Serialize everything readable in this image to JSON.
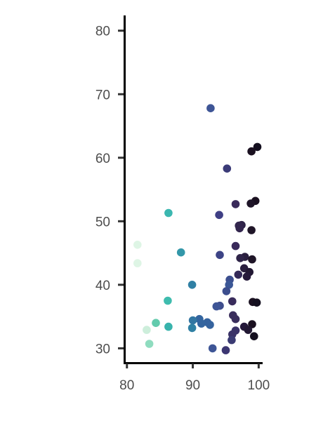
{
  "chart_data": {
    "type": "scatter",
    "xlabel": "",
    "ylabel": "",
    "xlim": [
      79.6,
      100.6
    ],
    "ylim": [
      27.5,
      82.4
    ],
    "x_ticks": [
      80,
      90,
      100
    ],
    "x_tick_labels": [
      "80",
      "90",
      "100"
    ],
    "y_ticks": [
      30,
      40,
      50,
      60,
      70,
      80
    ],
    "y_tick_labels": [
      "30",
      "40",
      "50",
      "60",
      "70",
      "80"
    ],
    "grid": false,
    "legend": "none",
    "color_scale": "mako (dark at high x, light at low x)",
    "points": [
      {
        "x": 92.7,
        "y": 67.8,
        "color": "#3e5596"
      },
      {
        "x": 99.8,
        "y": 61.7,
        "color": "#140f1f"
      },
      {
        "x": 98.9,
        "y": 61.0,
        "color": "#1a1020"
      },
      {
        "x": 95.2,
        "y": 58.3,
        "color": "#3b3b78"
      },
      {
        "x": 99.5,
        "y": 53.2,
        "color": "#1a1020"
      },
      {
        "x": 98.8,
        "y": 52.8,
        "color": "#1f1528"
      },
      {
        "x": 96.5,
        "y": 52.7,
        "color": "#392a5a"
      },
      {
        "x": 86.3,
        "y": 51.3,
        "color": "#3bb7b0"
      },
      {
        "x": 94.0,
        "y": 51.0,
        "color": "#3f3f85"
      },
      {
        "x": 97.4,
        "y": 49.4,
        "color": "#2f2448"
      },
      {
        "x": 97.0,
        "y": 49.3,
        "color": "#33264e"
      },
      {
        "x": 97.1,
        "y": 48.9,
        "color": "#33264e"
      },
      {
        "x": 98.9,
        "y": 48.6,
        "color": "#1f1528"
      },
      {
        "x": 81.6,
        "y": 46.3,
        "color": "#def5e5"
      },
      {
        "x": 96.5,
        "y": 46.1,
        "color": "#392a5a"
      },
      {
        "x": 88.2,
        "y": 45.1,
        "color": "#3397a9"
      },
      {
        "x": 94.1,
        "y": 44.7,
        "color": "#3d4486"
      },
      {
        "x": 97.9,
        "y": 44.4,
        "color": "#2a1f3f"
      },
      {
        "x": 97.2,
        "y": 44.2,
        "color": "#2f2448"
      },
      {
        "x": 99.0,
        "y": 44.0,
        "color": "#1f1528"
      },
      {
        "x": 81.6,
        "y": 43.4,
        "color": "#def5e5"
      },
      {
        "x": 97.8,
        "y": 42.6,
        "color": "#2a1f3f"
      },
      {
        "x": 98.6,
        "y": 42.0,
        "color": "#221833"
      },
      {
        "x": 96.9,
        "y": 41.6,
        "color": "#342a58"
      },
      {
        "x": 98.2,
        "y": 41.3,
        "color": "#25193a"
      },
      {
        "x": 95.6,
        "y": 40.8,
        "color": "#3c4f8f"
      },
      {
        "x": 95.5,
        "y": 40.0,
        "color": "#3b5796"
      },
      {
        "x": 89.9,
        "y": 40.0,
        "color": "#3080a4"
      },
      {
        "x": 95.1,
        "y": 39.0,
        "color": "#3c4e8e"
      },
      {
        "x": 86.2,
        "y": 37.5,
        "color": "#3fbcae"
      },
      {
        "x": 96.0,
        "y": 37.4,
        "color": "#392c5c"
      },
      {
        "x": 99.1,
        "y": 37.3,
        "color": "#1a1020"
      },
      {
        "x": 99.7,
        "y": 37.2,
        "color": "#140f1f"
      },
      {
        "x": 94.1,
        "y": 36.7,
        "color": "#3f4d8c"
      },
      {
        "x": 93.6,
        "y": 36.6,
        "color": "#3e5596"
      },
      {
        "x": 96.1,
        "y": 35.2,
        "color": "#3a2e5c"
      },
      {
        "x": 96.5,
        "y": 34.6,
        "color": "#3a2e5c"
      },
      {
        "x": 91.0,
        "y": 34.6,
        "color": "#34659f"
      },
      {
        "x": 90.0,
        "y": 34.4,
        "color": "#3376a2"
      },
      {
        "x": 92.2,
        "y": 34.1,
        "color": "#35639e"
      },
      {
        "x": 91.3,
        "y": 33.9,
        "color": "#34659f"
      },
      {
        "x": 92.6,
        "y": 33.7,
        "color": "#35639e"
      },
      {
        "x": 84.4,
        "y": 34.0,
        "color": "#63cbad"
      },
      {
        "x": 99.0,
        "y": 33.8,
        "color": "#1a1020"
      },
      {
        "x": 97.8,
        "y": 33.4,
        "color": "#25193a"
      },
      {
        "x": 86.3,
        "y": 33.4,
        "color": "#38b3ac"
      },
      {
        "x": 89.9,
        "y": 33.2,
        "color": "#3080a4"
      },
      {
        "x": 98.4,
        "y": 32.9,
        "color": "#221833"
      },
      {
        "x": 96.5,
        "y": 32.8,
        "color": "#3b3368"
      },
      {
        "x": 83.0,
        "y": 32.9,
        "color": "#cdeedb"
      },
      {
        "x": 96.0,
        "y": 32.2,
        "color": "#3b3368"
      },
      {
        "x": 99.3,
        "y": 31.9,
        "color": "#140f1f"
      },
      {
        "x": 95.9,
        "y": 31.3,
        "color": "#3b3b73"
      },
      {
        "x": 83.4,
        "y": 30.7,
        "color": "#8fdcbf"
      },
      {
        "x": 93.0,
        "y": 30.0,
        "color": "#3e5596"
      },
      {
        "x": 95.0,
        "y": 29.7,
        "color": "#3c3672"
      }
    ]
  }
}
